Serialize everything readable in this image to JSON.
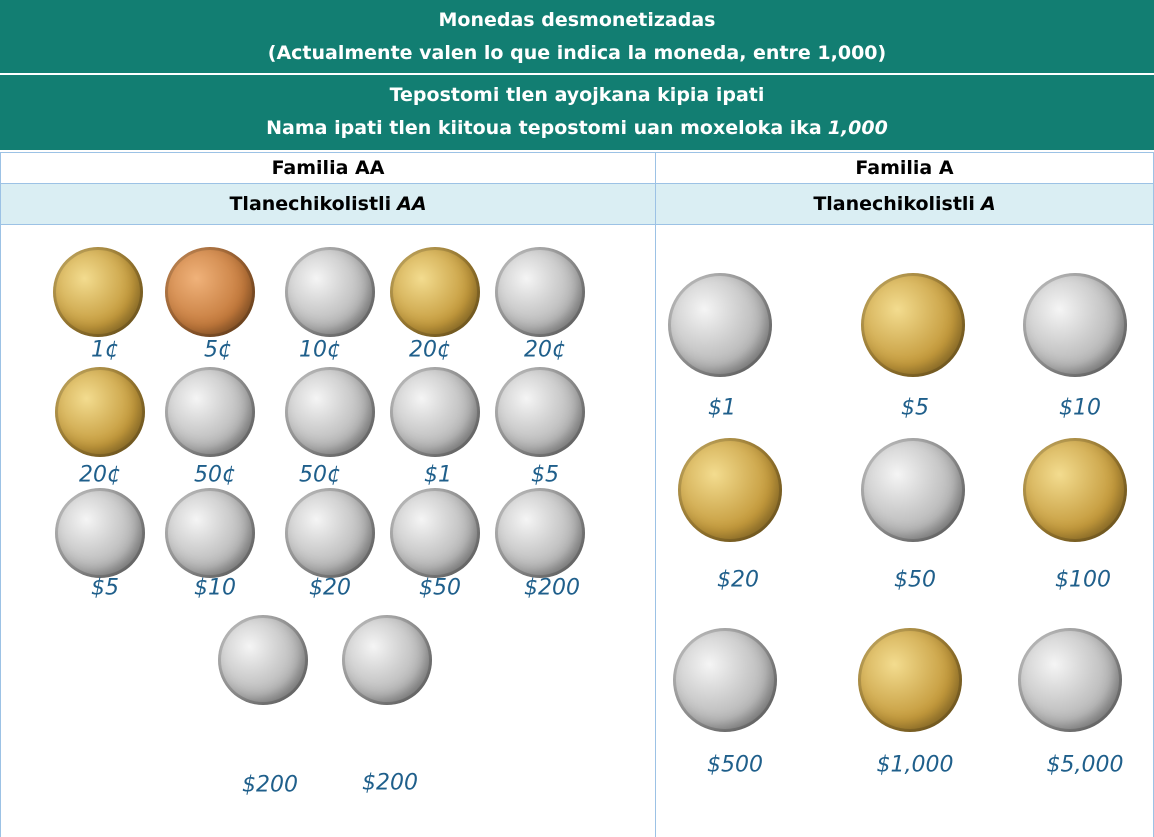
{
  "header": {
    "title_es": "Monedas desmonetizadas",
    "subtitle_es": "(Actualmente valen lo que indica la moneda, entre 1,000)",
    "title_nah": "Tepostomi tlen ayojkana kipia ipati",
    "subtitle_nah": {
      "text": "Nama ipati tlen kiitoua tepostomi uan moxeloka ika",
      "emphasis": "1,000"
    }
  },
  "columns": [
    {
      "family": "Familia AA",
      "group": {
        "text": "Tlanechikolistli",
        "emphasis": "AA"
      },
      "coins": [
        "1¢",
        "5¢",
        "10¢",
        "20¢",
        "20¢",
        "20¢",
        "50¢",
        "50¢",
        "$1",
        "$5",
        "$5",
        "$10",
        "$20",
        "$50",
        "$200",
        "$200",
        "$200"
      ]
    },
    {
      "family": "Familia A",
      "group": {
        "text": "Tlanechikolistli",
        "emphasis": "A"
      },
      "coins": [
        "$1",
        "$5",
        "$10",
        "$20",
        "$50",
        "$100",
        "$500",
        "$1,000",
        "$5,000"
      ]
    }
  ]
}
